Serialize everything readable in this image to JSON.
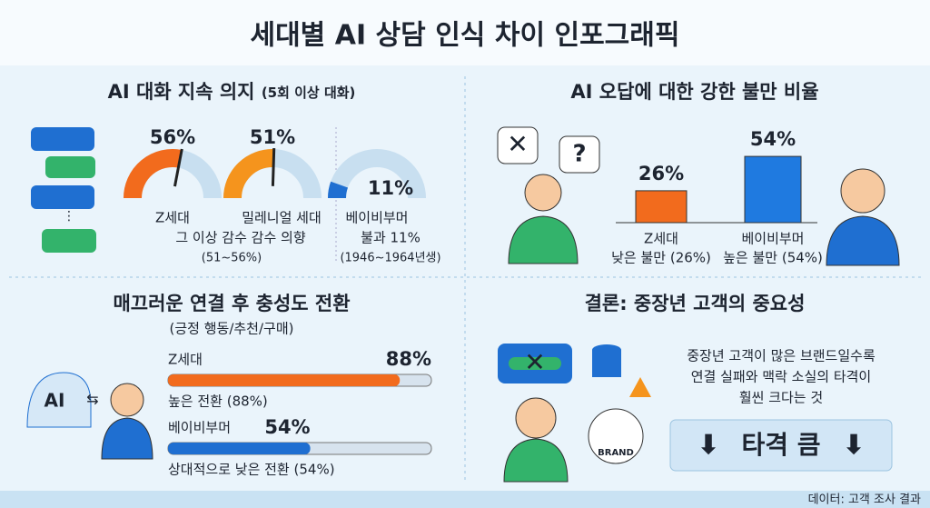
{
  "title": "세대별 AI 상담 인식 차이 인포그래픽",
  "value_range": [
    0,
    100
  ],
  "continuation": {
    "title": "AI 대화 지속 의지",
    "subtitle": "(5회 이상 대화)",
    "gauges": [
      {
        "value": 56,
        "label": "56%",
        "name": "Z세대",
        "color": "#f26b1d"
      },
      {
        "value": 51,
        "label": "51%",
        "name": "밀레니얼 세대",
        "color": "#f5941d"
      },
      {
        "value": 11,
        "label": "11%",
        "name": "베이비부머",
        "color": "#1f6fd1"
      }
    ],
    "note": "그 이상 감수 감수 의향",
    "note_range": "(51~56%)",
    "boomer_note": "불과 11%",
    "boomer_years": "(1946~1964년생)"
  },
  "dissatisfaction": {
    "title": "AI 오답에 대한 강한 불만 비율",
    "bars": [
      {
        "value": 26,
        "label": "26%",
        "name": "Z세대",
        "caption": "낮은 불만 (26%)",
        "color": "#f26b1d"
      },
      {
        "value": 54,
        "label": "54%",
        "name": "베이비부머",
        "caption": "높은 불만 (54%)",
        "color": "#1f7ae0"
      }
    ]
  },
  "loyalty": {
    "title": "매끄러운 연결 후 충성도 전환",
    "subtitle": "(긍정 행동/추천/구매)",
    "icon_text": "AI",
    "bars": [
      {
        "value": 88,
        "label": "88%",
        "name": "Z세대",
        "caption": "높은 전환 (88%)",
        "color": "#f26b1d"
      },
      {
        "value": 54,
        "label": "54%",
        "name": "베이비부머",
        "caption": "상대적으로 낮은 전환 (54%)",
        "color": "#1f6fd1"
      }
    ]
  },
  "conclusion": {
    "title": "결론: 중장년 고객의 중요성",
    "lines": [
      "중장년 고객이 많은 브랜드일수록",
      "연결 실패와 맥락 소실의 타격이",
      "훨씬 크다는 것"
    ],
    "banner": "타격 큼",
    "brand": "BRAND"
  },
  "footer": "데이터: 고객 조사 결과"
}
